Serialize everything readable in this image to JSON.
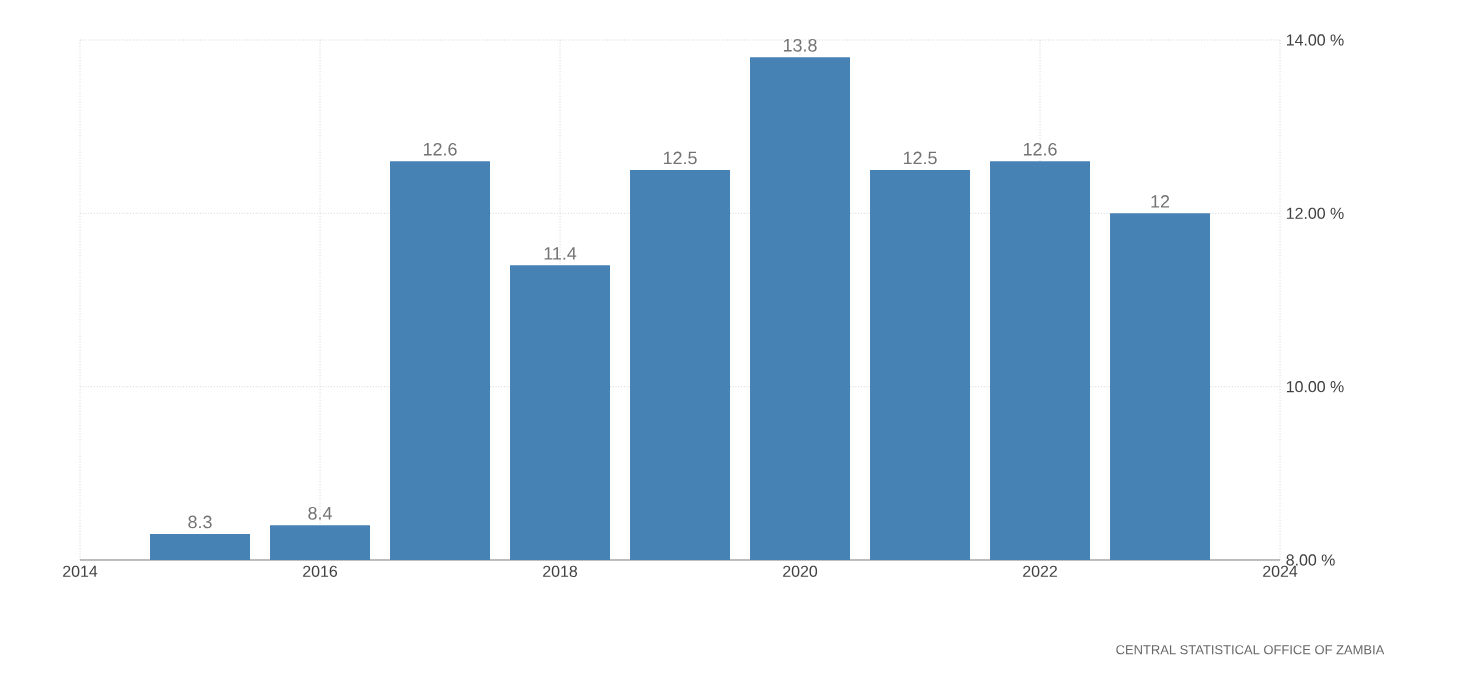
{
  "chart_data": {
    "type": "bar",
    "x": [
      2015,
      2016,
      2017,
      2018,
      2019,
      2020,
      2021,
      2022,
      2023
    ],
    "values": [
      8.3,
      8.4,
      12.6,
      11.4,
      12.5,
      13.8,
      12.5,
      12.6,
      12
    ],
    "color": "#4682b4",
    "xlim": [
      2014,
      2024
    ],
    "xticks": [
      2014,
      2016,
      2018,
      2020,
      2022,
      2024
    ],
    "ylim": [
      8,
      14
    ],
    "yticks": [
      {
        "value": 8,
        "label": "8.00 %"
      },
      {
        "value": 10,
        "label": "10.00 %"
      },
      {
        "value": 12,
        "label": "12.00 %"
      },
      {
        "value": 14,
        "label": "14.00 %"
      }
    ],
    "grid": true,
    "data_labels": true,
    "annotations": [
      "CENTRAL STATISTICAL OFFICE OF ZAMBIA"
    ]
  }
}
